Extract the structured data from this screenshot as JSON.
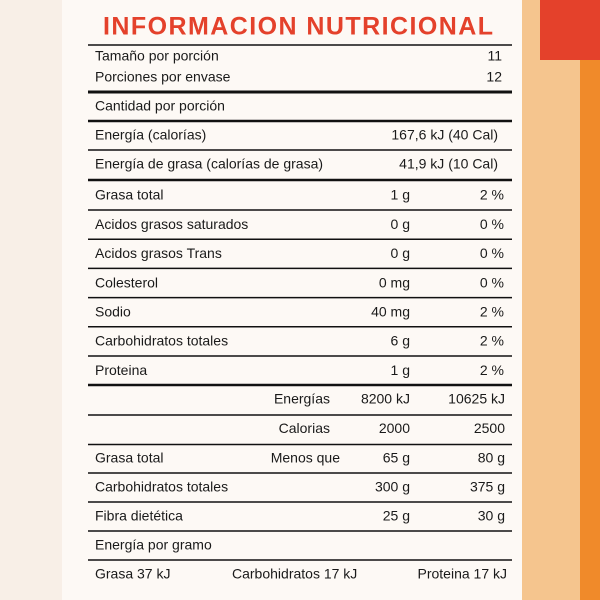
{
  "title": "INFORMACION NUTRICIONAL",
  "serving": [
    [
      "Tamaño por porción",
      "11"
    ],
    [
      "Porciones por envase",
      "12"
    ]
  ],
  "amount_header": "Cantidad por porción",
  "energy": [
    [
      "Energía (calorías)",
      "167,6 kJ (40 Cal)"
    ],
    [
      "Energía de grasa (calorías de grasa)",
      "41,9 kJ (10 Cal)"
    ]
  ],
  "nutrients": [
    [
      "Grasa total",
      "1 g",
      "2 %"
    ],
    [
      "Acidos grasos saturados",
      "0 g",
      "0 %"
    ],
    [
      "Acidos grasos Trans",
      "0 g",
      "0 %"
    ],
    [
      "Colesterol",
      "0 mg",
      "0 %"
    ],
    [
      "Sodio",
      "40 mg",
      "2 %"
    ],
    [
      "Carbohidratos totales",
      "6 g",
      "2 %"
    ],
    [
      "Proteina",
      "1 g",
      "2 %"
    ]
  ],
  "reference": {
    "units": [
      [
        "Energías",
        "8200 kJ",
        "10625 kJ"
      ],
      [
        "Calorias",
        "2000",
        "2500"
      ]
    ],
    "limits": [
      {
        "label": "Grasa total",
        "qualifier": "Menos que",
        "a": "65 g",
        "b": "80 g"
      },
      {
        "label": "Carbohidratos totales",
        "a": "300 g",
        "b": "375 g"
      },
      {
        "label": "Fibra dietética",
        "a": "25 g",
        "b": "30 g"
      }
    ]
  },
  "energy_per_gram": {
    "title": "Energía por gramo",
    "items": [
      "Grasa 37 kJ",
      "Carbohidratos 17 kJ",
      "Proteina 17 kJ"
    ]
  }
}
